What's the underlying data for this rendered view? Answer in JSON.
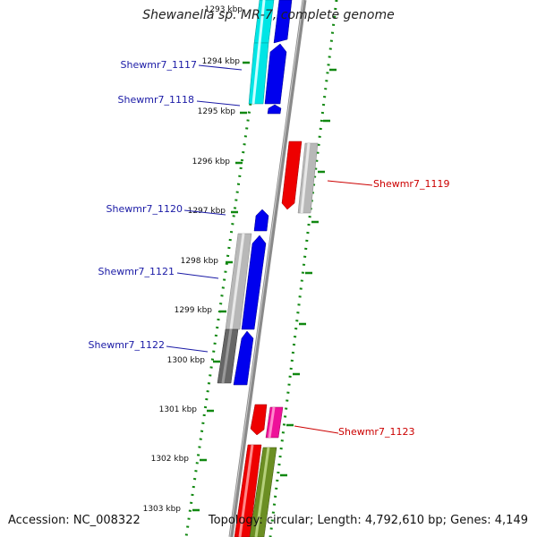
{
  "title": "Shewanella sp. MR-7, complete genome",
  "accession": "Accession: NC_008322",
  "topology": "Topology: circular; Length: 4,792,610 bp; Genes: 4,149",
  "ticks": [
    "1293 kbp",
    "1294 kbp",
    "1295 kbp",
    "1296 kbp",
    "1297 kbp",
    "1298 kbp",
    "1299 kbp",
    "1300 kbp",
    "1301 kbp",
    "1302 kbp",
    "1303 kbp"
  ],
  "gene_labels": [
    {
      "text": "Shewmr7_1117",
      "color": "#1a1aa6"
    },
    {
      "text": "Shewmr7_1118",
      "color": "#1a1aa6"
    },
    {
      "text": "Shewmr7_1119",
      "color": "#cc0000"
    },
    {
      "text": "Shewmr7_1120",
      "color": "#1a1aa6"
    },
    {
      "text": "Shewmr7_1121",
      "color": "#1a1aa6"
    },
    {
      "text": "Shewmr7_1122",
      "color": "#1a1aa6"
    },
    {
      "text": "Shewmr7_1123",
      "color": "#cc0000"
    }
  ],
  "colors": {
    "backbone": "#888888",
    "dotted": "#118811",
    "blue": "#0000ee",
    "cyan": "#00e5e5",
    "red": "#ee0000",
    "gray": "#b0b0b0",
    "darkgray": "#666666",
    "magenta": "#ee1199",
    "olive": "#6b8e23"
  }
}
